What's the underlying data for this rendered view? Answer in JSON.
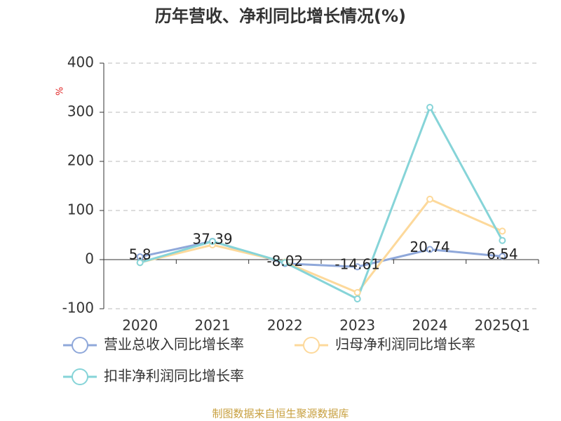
{
  "chart_data": {
    "type": "line",
    "title": "历年营收、净利同比增长情况(%)",
    "y_label": "%",
    "source": "制图数据来自恒生聚源数据库",
    "categories": [
      "2020",
      "2021",
      "2022",
      "2023",
      "2024",
      "2025Q1"
    ],
    "series": [
      {
        "name": "营业总收入同比增长率",
        "color": "#8fa8da",
        "values": [
          5.8,
          37.39,
          -8.02,
          -14.61,
          20.74,
          6.54
        ],
        "show_labels": true
      },
      {
        "name": "归母净利润同比增长率",
        "color": "#fdd99b",
        "values": [
          -6,
          30,
          -5,
          -67,
          123,
          58
        ],
        "show_labels": false
      },
      {
        "name": "扣非净利润同比增长率",
        "color": "#86d4d8",
        "values": [
          -6,
          37,
          -6,
          -80,
          310,
          39
        ],
        "show_labels": false
      }
    ],
    "ylim": [
      -100,
      400
    ],
    "yticks": [
      -100,
      0,
      100,
      200,
      300,
      400
    ],
    "grid": true
  }
}
